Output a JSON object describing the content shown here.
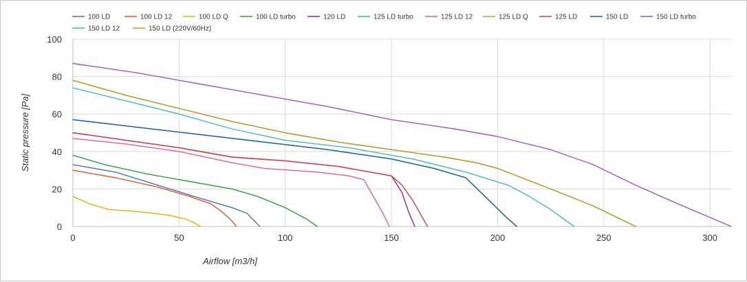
{
  "chart_data": {
    "type": "line",
    "xlabel": "Airflow [m3/h]",
    "ylabel": "Static pressure [Pa]",
    "xlim": [
      0,
      310
    ],
    "ylim": [
      0,
      100
    ],
    "x_ticks": [
      "0",
      "50",
      "100",
      "150",
      "200",
      "250",
      "300"
    ],
    "y_ticks": [
      "0",
      "20",
      "40",
      "60",
      "80",
      "100"
    ],
    "grid": true,
    "legend_position": "top",
    "series": [
      {
        "name": "100 LD",
        "color": "#4472c4",
        "points": [
          [
            0,
            33
          ],
          [
            20,
            29
          ],
          [
            40,
            22
          ],
          [
            60,
            15
          ],
          [
            75,
            10
          ],
          [
            82,
            7
          ],
          [
            88,
            0
          ]
        ]
      },
      {
        "name": "100 LD 12",
        "color": "#e8502b",
        "points": [
          [
            0,
            30
          ],
          [
            20,
            26
          ],
          [
            40,
            21
          ],
          [
            55,
            16
          ],
          [
            65,
            12
          ],
          [
            70,
            8
          ],
          [
            74,
            4
          ],
          [
            77,
            0
          ]
        ]
      },
      {
        "name": "100 LD Q",
        "color": "#f2a900",
        "points": [
          [
            0,
            16
          ],
          [
            8,
            12
          ],
          [
            17,
            9
          ],
          [
            30,
            8
          ],
          [
            45,
            6
          ],
          [
            53,
            4
          ],
          [
            57,
            2
          ],
          [
            60,
            0
          ]
        ]
      },
      {
        "name": "100 LD turbo",
        "color": "#2e9e3e",
        "points": [
          [
            0,
            38
          ],
          [
            15,
            33
          ],
          [
            35,
            28
          ],
          [
            55,
            24
          ],
          [
            75,
            20
          ],
          [
            87,
            16
          ],
          [
            100,
            10
          ],
          [
            110,
            4
          ],
          [
            115,
            0
          ]
        ]
      },
      {
        "name": "120 LD",
        "color": "#8e24aa",
        "points": [
          [
            0,
            50
          ],
          [
            25,
            46
          ],
          [
            50,
            42
          ],
          [
            75,
            37
          ],
          [
            100,
            35
          ],
          [
            125,
            32
          ],
          [
            150,
            27
          ],
          [
            155,
            18
          ],
          [
            158,
            8
          ],
          [
            161,
            0
          ]
        ]
      },
      {
        "name": "125 LD turbo",
        "color": "#26b5c8",
        "points": [
          [
            0,
            57
          ],
          [
            30,
            53
          ],
          [
            60,
            49
          ],
          [
            90,
            45
          ],
          [
            120,
            41
          ],
          [
            150,
            36
          ],
          [
            170,
            31
          ],
          [
            185,
            26
          ],
          [
            195,
            15
          ],
          [
            204,
            5
          ],
          [
            209,
            0
          ]
        ]
      },
      {
        "name": "125 LD 12",
        "color": "#e45c8e",
        "points": [
          [
            0,
            47
          ],
          [
            25,
            44
          ],
          [
            50,
            40
          ],
          [
            75,
            34
          ],
          [
            90,
            31
          ],
          [
            115,
            29
          ],
          [
            130,
            27
          ],
          [
            137,
            25
          ],
          [
            142,
            15
          ],
          [
            146,
            7
          ],
          [
            149,
            0
          ]
        ]
      },
      {
        "name": "125 LD Q",
        "color": "#8fb82e",
        "points": [
          [
            0,
            78
          ],
          [
            25,
            70
          ],
          [
            50,
            63
          ],
          [
            75,
            56
          ],
          [
            100,
            50
          ],
          [
            125,
            45
          ],
          [
            150,
            41
          ],
          [
            175,
            37
          ],
          [
            190,
            34
          ],
          [
            200,
            31
          ],
          [
            225,
            20
          ],
          [
            245,
            11
          ],
          [
            265,
            0
          ]
        ]
      },
      {
        "name": "125 LD",
        "color": "#d83c3c",
        "points": [
          [
            0,
            50
          ],
          [
            25,
            46
          ],
          [
            50,
            42
          ],
          [
            75,
            37
          ],
          [
            100,
            35
          ],
          [
            125,
            32
          ],
          [
            150,
            27
          ],
          [
            155,
            22
          ],
          [
            160,
            14
          ],
          [
            167,
            0
          ]
        ]
      },
      {
        "name": "150 LD",
        "color": "#1e5aa8",
        "points": [
          [
            0,
            57
          ],
          [
            30,
            53
          ],
          [
            60,
            49
          ],
          [
            90,
            45
          ],
          [
            120,
            41
          ],
          [
            150,
            36
          ],
          [
            170,
            31
          ],
          [
            185,
            26
          ],
          [
            195,
            15
          ],
          [
            204,
            5
          ],
          [
            209,
            0
          ]
        ]
      },
      {
        "name": "150 LD turbo",
        "color": "#9b59b6",
        "points": [
          [
            0,
            87
          ],
          [
            30,
            82
          ],
          [
            60,
            76
          ],
          [
            90,
            70
          ],
          [
            120,
            64
          ],
          [
            150,
            57
          ],
          [
            180,
            52
          ],
          [
            200,
            48
          ],
          [
            225,
            41
          ],
          [
            245,
            33
          ],
          [
            265,
            22
          ],
          [
            285,
            12
          ],
          [
            310,
            0
          ]
        ]
      },
      {
        "name": "150 LD 12",
        "color": "#3ebdb5",
        "points": [
          [
            0,
            74
          ],
          [
            25,
            67
          ],
          [
            50,
            60
          ],
          [
            75,
            52
          ],
          [
            100,
            46
          ],
          [
            130,
            42
          ],
          [
            160,
            36
          ],
          [
            185,
            29
          ],
          [
            205,
            22
          ],
          [
            215,
            16
          ],
          [
            225,
            9
          ],
          [
            236,
            0
          ]
        ]
      },
      {
        "name": "150 LD (220V/60Hz)",
        "color": "#b59a2b",
        "points": [
          [
            0,
            78
          ],
          [
            25,
            70
          ],
          [
            50,
            63
          ],
          [
            75,
            56
          ],
          [
            100,
            50
          ],
          [
            125,
            45
          ],
          [
            150,
            41
          ],
          [
            175,
            37
          ],
          [
            190,
            34
          ],
          [
            200,
            31
          ],
          [
            225,
            20
          ],
          [
            245,
            11
          ],
          [
            265,
            0
          ]
        ]
      }
    ]
  }
}
